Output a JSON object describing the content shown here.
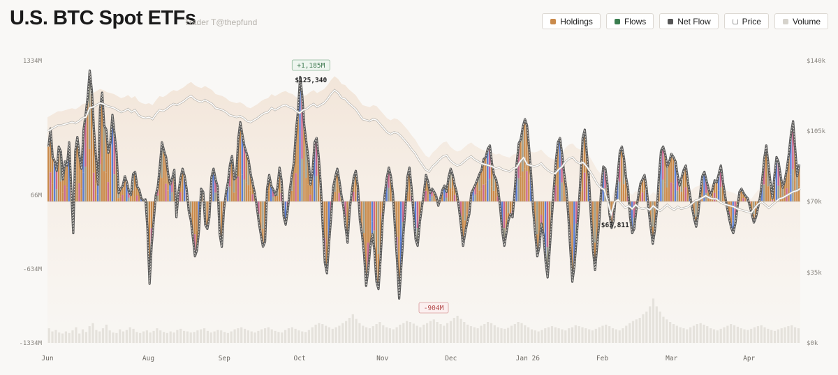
{
  "header": {
    "title": "U.S. BTC Spot ETFs",
    "subtitle": "Trader T@thepfund"
  },
  "legend": [
    {
      "label": "Holdings",
      "color": "#c98a4b",
      "icon": "square"
    },
    {
      "label": "Flows",
      "color": "#3a7d4f",
      "icon": "square"
    },
    {
      "label": "Net Flow",
      "color": "#555555",
      "icon": "square"
    },
    {
      "label": "Price",
      "color": "#ffffff",
      "icon": "line"
    },
    {
      "label": "Volume",
      "color": "#d6d3cc",
      "icon": "square"
    }
  ],
  "chart_data": {
    "type": "bar",
    "title": "U.S. BTC Spot ETFs",
    "y_left": {
      "ticks": [
        "1334M",
        "66M",
        "-634M",
        "-1334M"
      ],
      "range": [
        -1334,
        1334
      ],
      "unit": "M"
    },
    "y_right": {
      "ticks": [
        "$140k",
        "$105k",
        "$70k",
        "$35k",
        "$0k"
      ],
      "range": [
        0,
        140000
      ]
    },
    "x_ticks": [
      "Jun",
      "Aug",
      "Sep",
      "Oct",
      "Nov",
      "Dec",
      "Jan 26",
      "Feb",
      "Mar",
      "Apr"
    ],
    "x_tick_pos": [
      0,
      0.134,
      0.235,
      0.335,
      0.445,
      0.536,
      0.638,
      0.737,
      0.829,
      0.932
    ],
    "series": [
      {
        "name": "Net Flow",
        "color": "#555555",
        "values": [
          520,
          690,
          420,
          380,
          290,
          520,
          470,
          210,
          380,
          340,
          560,
          120,
          -300,
          480,
          610,
          430,
          310,
          680,
          820,
          990,
          1240,
          1050,
          680,
          420,
          160,
          880,
          1030,
          720,
          680,
          460,
          560,
          820,
          640,
          460,
          80,
          120,
          150,
          240,
          180,
          90,
          60,
          260,
          280,
          140,
          110,
          30,
          10,
          20,
          -260,
          -780,
          -420,
          -180,
          60,
          140,
          340,
          560,
          480,
          420,
          260,
          160,
          220,
          300,
          -150,
          80,
          220,
          310,
          240,
          110,
          -90,
          -180,
          -340,
          -520,
          -460,
          -260,
          120,
          90,
          -220,
          -260,
          -150,
          230,
          310,
          210,
          140,
          -310,
          -430,
          -90,
          80,
          180,
          350,
          430,
          210,
          230,
          590,
          750,
          630,
          520,
          460,
          390,
          260,
          170,
          80,
          -50,
          -200,
          -320,
          -430,
          -380,
          120,
          250,
          150,
          110,
          60,
          130,
          320,
          200,
          -140,
          -220,
          -80,
          110,
          250,
          370,
          670,
          860,
          1180,
          1010,
          720,
          560,
          410,
          160,
          270,
          560,
          600,
          420,
          160,
          -250,
          -580,
          -680,
          -400,
          -150,
          130,
          230,
          310,
          200,
          60,
          -50,
          -240,
          -390,
          -80,
          80,
          230,
          290,
          140,
          -180,
          -310,
          -500,
          -800,
          -650,
          -430,
          -310,
          -460,
          -760,
          -830,
          -540,
          -180,
          60,
          220,
          320,
          240,
          70,
          -260,
          -560,
          -920,
          -630,
          -320,
          -80,
          230,
          320,
          130,
          -120,
          -360,
          -420,
          -200,
          -60,
          80,
          250,
          190,
          80,
          120,
          90,
          50,
          -40,
          30,
          110,
          150,
          90,
          230,
          310,
          250,
          150,
          80,
          -60,
          -230,
          -420,
          -300,
          -200,
          -120,
          80,
          120,
          160,
          210,
          260,
          300,
          400,
          420,
          500,
          530,
          360,
          250,
          210,
          120,
          -60,
          -280,
          -420,
          -300,
          -180,
          -120,
          -150,
          90,
          360,
          550,
          590,
          710,
          780,
          720,
          510,
          250,
          -80,
          -310,
          -520,
          -430,
          -210,
          -320,
          -570,
          -720,
          -450,
          -160,
          120,
          380,
          560,
          600,
          450,
          270,
          130,
          -120,
          -450,
          -760,
          -610,
          -350,
          -80,
          240,
          600,
          680,
          460,
          230,
          -140,
          -460,
          -650,
          -420,
          -200,
          120,
          330,
          310,
          160,
          -120,
          -250,
          -180,
          60,
          250,
          470,
          520,
          410,
          230,
          120,
          -150,
          -300,
          -260,
          -80,
          60,
          170,
          210,
          250,
          120,
          -80,
          -250,
          -400,
          -270,
          -80,
          250,
          480,
          520,
          450,
          330,
          380,
          450,
          420,
          380,
          250,
          150,
          230,
          300,
          340,
          190,
          60,
          -50,
          -160,
          -240,
          -120,
          80,
          240,
          280,
          200,
          120,
          60,
          120,
          200,
          180,
          260,
          340,
          190,
          60,
          -60,
          -160,
          -250,
          -300,
          -210,
          -60,
          90,
          120,
          80,
          50,
          30,
          -40,
          -120,
          -200,
          -150,
          -60,
          40,
          200,
          400,
          530,
          360,
          180,
          30,
          250,
          420,
          370,
          240,
          130,
          200,
          310,
          460,
          640,
          760,
          510,
          240,
          350
        ]
      },
      {
        "name": "Price",
        "color": "#ffffff",
        "values": [
          105000,
          106000,
          107000,
          108000,
          108000,
          108500,
          109000,
          109500,
          109000,
          110000,
          111500,
          112000,
          116500,
          117000,
          118000,
          119000,
          118500,
          117500,
          117000,
          116500,
          115500,
          114500,
          115000,
          116000,
          114500,
          115500,
          113000,
          112000,
          111500,
          112000,
          111000,
          113500,
          115500,
          115000,
          116000,
          117500,
          118500,
          118000,
          119000,
          120000,
          121500,
          122500,
          121000,
          120000,
          119500,
          120500,
          119500,
          118500,
          116500,
          116000,
          115500,
          114500,
          113000,
          112500,
          112000,
          112500,
          111500,
          110000,
          109500,
          110500,
          111500,
          113000,
          114000,
          114500,
          116500,
          115500,
          116500,
          117500,
          118000,
          117000,
          116500,
          115000,
          114000,
          115500,
          116000,
          117500,
          118500,
          117000,
          118000,
          119000,
          121000,
          123500,
          125340,
          124000,
          121500,
          121000,
          119000,
          117500,
          116000,
          113500,
          111000,
          110500,
          110000,
          111000,
          110500,
          108500,
          106500,
          104500,
          103500,
          104500,
          104000,
          102500,
          100500,
          98500,
          96000,
          94000,
          91000,
          88500,
          86000,
          85000,
          87500,
          89000,
          91000,
          92500,
          93000,
          90500,
          89000,
          88000,
          88500,
          90000,
          91500,
          92500,
          91000,
          90000,
          89000,
          88500,
          88000,
          87500,
          86500,
          87000,
          86000,
          85500,
          85000,
          86500,
          87000,
          90000,
          92000,
          88500,
          88000,
          87500,
          88000,
          89000,
          87000,
          85500,
          84500,
          84000,
          86000,
          87500,
          90000,
          91500,
          92000,
          90000,
          89000,
          89500,
          87500,
          85000,
          82000,
          79000,
          77000,
          76000,
          70000,
          63811,
          70000,
          71000,
          69000,
          67000,
          68000,
          66500,
          68500,
          67000,
          66500,
          67000,
          66000,
          68000,
          66500,
          65500,
          67000,
          68500,
          67000,
          66000,
          67500,
          66500,
          67000,
          67500,
          69000,
          70500,
          71000,
          72000,
          73000,
          72000,
          71500,
          71500,
          70000,
          69000,
          68500,
          68000,
          67500,
          66500,
          66000,
          65500,
          65000,
          64500,
          67000,
          69000,
          70000,
          68500,
          67000,
          68500,
          70000,
          71500,
          72000,
          73000,
          74000,
          75000,
          75500,
          76500
        ]
      },
      {
        "name": "Volume",
        "color": "#d6d3cc",
        "values": [
          28,
          22,
          25,
          20,
          18,
          22,
          19,
          24,
          30,
          18,
          26,
          21,
          32,
          38,
          25,
          22,
          28,
          35,
          24,
          20,
          19,
          26,
          22,
          25,
          30,
          27,
          21,
          19,
          22,
          24,
          20,
          23,
          28,
          24,
          21,
          19,
          22,
          20,
          25,
          27,
          23,
          22,
          20,
          21,
          24,
          26,
          28,
          23,
          20,
          22,
          25,
          24,
          21,
          19,
          22,
          26,
          28,
          30,
          27,
          24,
          22,
          20,
          23,
          26,
          28,
          30,
          26,
          23,
          21,
          20,
          25,
          28,
          30,
          27,
          24,
          22,
          21,
          25,
          30,
          35,
          38,
          36,
          33,
          30,
          27,
          30,
          33,
          38,
          42,
          48,
          55,
          46,
          38,
          33,
          30,
          28,
          32,
          36,
          40,
          34,
          30,
          28,
          26,
          30,
          35,
          38,
          42,
          40,
          37,
          33,
          30,
          35,
          38,
          42,
          45,
          40,
          36,
          33,
          38,
          42,
          48,
          52,
          46,
          40,
          35,
          32,
          30,
          28,
          33,
          36,
          40,
          38,
          34,
          30,
          28,
          27,
          29,
          33,
          36,
          40,
          38,
          34,
          30,
          26,
          24,
          22,
          25,
          28,
          30,
          32,
          30,
          28,
          26,
          24,
          28,
          30,
          34,
          32,
          30,
          28,
          26,
          24,
          27,
          30,
          33,
          35,
          32,
          28,
          26,
          24,
          28,
          33,
          38,
          42,
          45,
          48,
          55,
          60,
          70,
          85,
          70,
          60,
          50,
          45,
          40,
          36,
          33,
          30,
          28,
          26,
          30,
          33,
          36,
          38,
          35,
          32,
          28,
          26,
          24,
          27,
          30,
          33,
          36,
          34,
          31,
          28,
          26,
          25,
          27,
          30,
          32,
          34,
          30,
          27,
          25,
          23,
          26,
          28,
          30,
          32,
          34,
          30,
          28
        ]
      }
    ],
    "annotations": [
      {
        "text": "+1,185M",
        "kind": "high-flow",
        "pos": 0.35
      },
      {
        "text": "$125,340",
        "kind": "high-price",
        "pos": 0.35
      },
      {
        "text": "-904M",
        "kind": "low-flow",
        "pos": 0.513
      },
      {
        "text": "$63,811",
        "kind": "low-price",
        "pos": 0.754
      }
    ],
    "colors": {
      "holdings": "#c98a4b",
      "accent_blue": "#5b7fd6",
      "accent_pink": "#c9678e",
      "flows": "#3a7d4f",
      "net_flow": "#555555"
    }
  }
}
